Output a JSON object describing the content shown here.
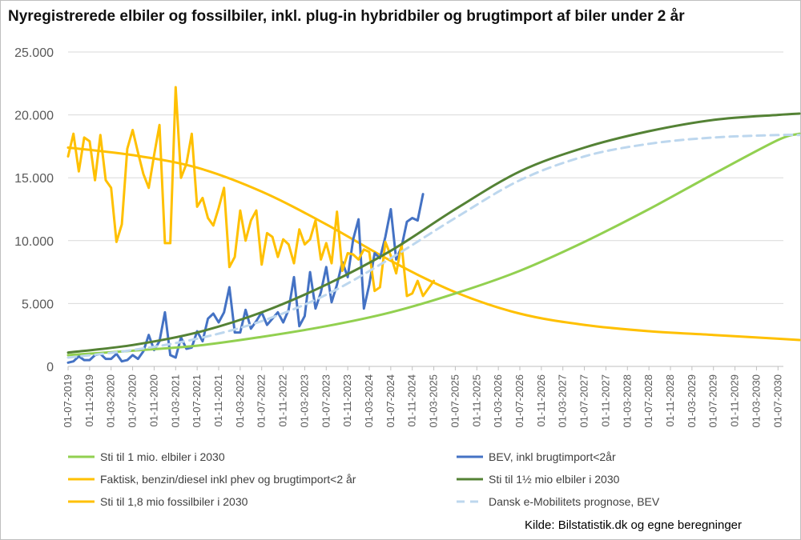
{
  "title": "Nyregistrerede elbiler og fossilbiler, inkl. plug-in hybridbiler og brugtimport af biler under 2 år",
  "source": "Kilde: Bilstatistik.dk og egne beregninger",
  "chart_data": {
    "type": "line",
    "ylim": [
      0,
      25000
    ],
    "yticks": [
      0,
      5000,
      10000,
      15000,
      20000,
      25000
    ],
    "ytick_labels": [
      "0",
      "5.000",
      "10.000",
      "15.000",
      "20.000",
      "25.000"
    ],
    "grid": "horizontal",
    "legend_position": "bottom",
    "x_labels": [
      "01-07-2019",
      "01-11-2019",
      "01-03-2020",
      "01-07-2020",
      "01-11-2020",
      "01-03-2021",
      "01-07-2021",
      "01-11-2021",
      "01-03-2022",
      "01-07-2022",
      "01-11-2022",
      "01-03-2023",
      "01-07-2023",
      "01-11-2023",
      "01-03-2024",
      "01-07-2024",
      "01-11-2024",
      "01-03-2025",
      "01-07-2025",
      "01-11-2025",
      "01-03-2026",
      "01-07-2026",
      "01-11-2026",
      "01-03-2027",
      "01-07-2027",
      "01-11-2027",
      "01-03-2028",
      "01-07-2028",
      "01-11-2028",
      "01-03-2029",
      "01-07-2029",
      "01-11-2029",
      "01-03-2030",
      "01-07-2030"
    ],
    "months_total": 133,
    "series": [
      {
        "name": "Sti til 1 mio. elbiler i 2030",
        "color": "#92d050",
        "width": 3,
        "dash": "",
        "points": [
          [
            0,
            900
          ],
          [
            12,
            1250
          ],
          [
            24,
            1650
          ],
          [
            36,
            2350
          ],
          [
            48,
            3200
          ],
          [
            60,
            4300
          ],
          [
            72,
            5800
          ],
          [
            84,
            7600
          ],
          [
            96,
            9900
          ],
          [
            108,
            12500
          ],
          [
            120,
            15300
          ],
          [
            132,
            18000
          ],
          [
            136,
            18500
          ]
        ]
      },
      {
        "name": "BEV, inkl brugtimport<2år",
        "color": "#4472c4",
        "width": 3,
        "dash": "",
        "values": [
          300,
          400,
          800,
          500,
          500,
          900,
          1000,
          600,
          600,
          1000,
          400,
          500,
          900,
          600,
          1200,
          2500,
          1300,
          2000,
          4300,
          900,
          700,
          2300,
          1400,
          1500,
          2800,
          2000,
          3800,
          4200,
          3500,
          4300,
          6300,
          2700,
          2700,
          4500,
          3000,
          3600,
          4300,
          3300,
          3800,
          4300,
          3500,
          4500,
          7100,
          3200,
          4000,
          7500,
          4600,
          5900,
          7900,
          5100,
          6500,
          8300,
          7100,
          10100,
          11700,
          4600,
          6500,
          9000,
          8600,
          10300,
          12500,
          8500,
          9500,
          11500,
          11800,
          11600,
          13700
        ]
      },
      {
        "name": "Faktisk, benzin/diesel inkl phev og brugtimport<2 år",
        "color": "#ffc000",
        "width": 3,
        "dash": "",
        "values": [
          16700,
          18500,
          15500,
          18200,
          17900,
          14800,
          18400,
          14800,
          14200,
          9900,
          11300,
          17300,
          18800,
          17000,
          15300,
          14200,
          16800,
          19200,
          9800,
          9800,
          22200,
          15000,
          16100,
          18500,
          12700,
          13400,
          11800,
          11200,
          12600,
          14200,
          7900,
          8700,
          12400,
          10000,
          11600,
          12400,
          8100,
          10600,
          10300,
          8700,
          10100,
          9700,
          8200,
          10900,
          9700,
          10100,
          11600,
          8500,
          9800,
          8200,
          12300,
          7600,
          9000,
          8900,
          8500,
          9300,
          9100,
          6000,
          6300,
          9900,
          8800,
          7400,
          9700,
          5600,
          5800,
          6800,
          5600,
          6200,
          6800
        ]
      },
      {
        "name": "Sti til 1½ mio elbiler i 2030",
        "color": "#548235",
        "width": 3,
        "dash": "",
        "points": [
          [
            0,
            1100
          ],
          [
            12,
            1700
          ],
          [
            24,
            2700
          ],
          [
            36,
            4300
          ],
          [
            48,
            6500
          ],
          [
            60,
            9200
          ],
          [
            72,
            12500
          ],
          [
            84,
            15500
          ],
          [
            96,
            17400
          ],
          [
            108,
            18700
          ],
          [
            120,
            19600
          ],
          [
            132,
            20000
          ],
          [
            136,
            20100
          ]
        ]
      },
      {
        "name": "Sti til 1,8 mio fossilbiler i 2030",
        "color": "#ffc000",
        "width": 3,
        "dash": "",
        "points": [
          [
            0,
            17400
          ],
          [
            12,
            16800
          ],
          [
            24,
            15800
          ],
          [
            36,
            13900
          ],
          [
            48,
            11300
          ],
          [
            60,
            8400
          ],
          [
            72,
            5900
          ],
          [
            84,
            4200
          ],
          [
            96,
            3300
          ],
          [
            108,
            2800
          ],
          [
            120,
            2500
          ],
          [
            132,
            2200
          ],
          [
            136,
            2100
          ]
        ]
      },
      {
        "name": "Dansk e-Mobilitets prognose, BEV",
        "color": "#bdd7ee",
        "width": 3,
        "dash": "10,7",
        "points": [
          [
            0,
            700
          ],
          [
            12,
            1300
          ],
          [
            24,
            2200
          ],
          [
            36,
            3600
          ],
          [
            48,
            5700
          ],
          [
            60,
            8600
          ],
          [
            72,
            11800
          ],
          [
            84,
            14800
          ],
          [
            96,
            16700
          ],
          [
            108,
            17700
          ],
          [
            120,
            18200
          ],
          [
            132,
            18400
          ],
          [
            136,
            18400
          ]
        ]
      }
    ]
  }
}
